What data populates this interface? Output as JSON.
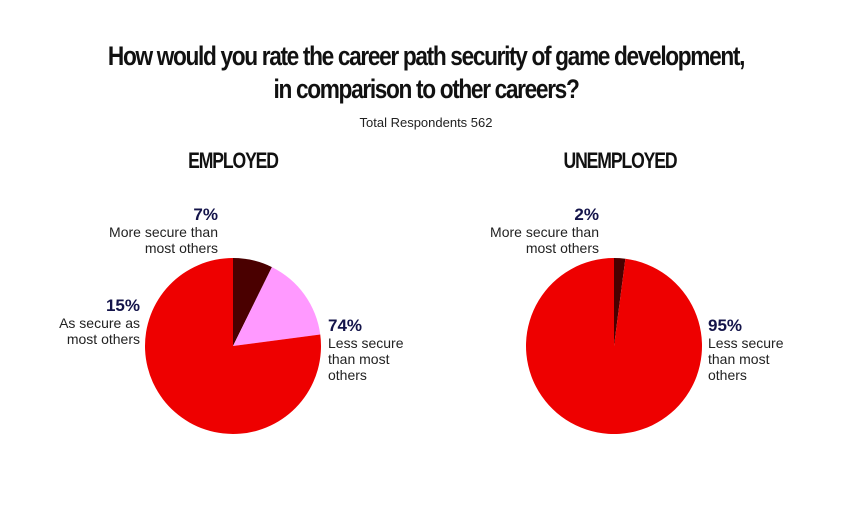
{
  "title_line1": "How would you rate the career path security of game development,",
  "title_line2": "in comparison to other careers?",
  "subtitle": "Total Respondents 562",
  "colors": {
    "less_secure": "#ee0000",
    "as_secure": "#ff99ff",
    "more_secure": "#4a0000"
  },
  "chart_data": [
    {
      "type": "pie",
      "title": "EMPLOYED",
      "slices": [
        {
          "label_line1": "Less secure",
          "label_line2": "than most",
          "label_line3": "others",
          "value": 74,
          "pct_text": "74%",
          "color": "#ee0000"
        },
        {
          "label_line1": "As secure as",
          "label_line2": "most others",
          "value": 15,
          "pct_text": "15%",
          "color": "#ff99ff"
        },
        {
          "label_line1": "More secure than",
          "label_line2": "most others",
          "value": 7,
          "pct_text": "7%",
          "color": "#4a0000"
        }
      ]
    },
    {
      "type": "pie",
      "title": "UNEMPLOYED",
      "slices": [
        {
          "label_line1": "Less secure",
          "label_line2": "than most",
          "label_line3": "others",
          "value": 95,
          "pct_text": "95%",
          "color": "#ee0000"
        },
        {
          "label_line1": "More secure than",
          "label_line2": "most others",
          "value": 2,
          "pct_text": "2%",
          "color": "#4a0000"
        }
      ]
    }
  ]
}
